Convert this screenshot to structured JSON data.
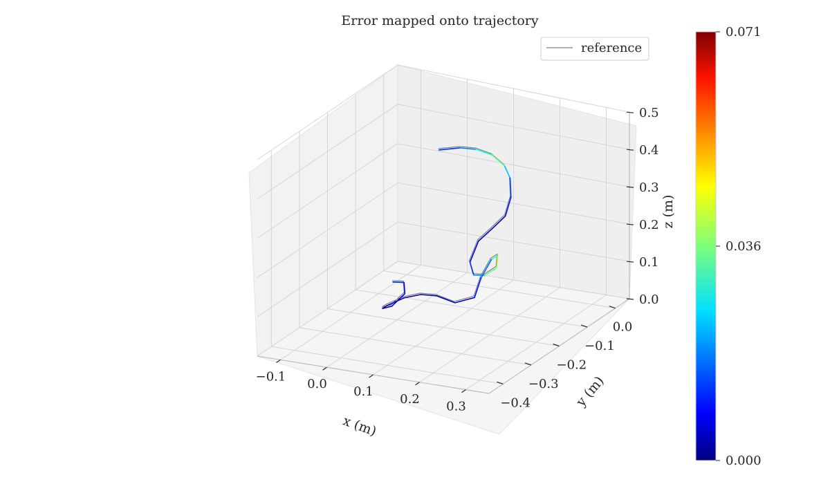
{
  "chart_data": {
    "type": "line",
    "projection": "3d",
    "title": "Error mapped onto trajectory",
    "xlabel": "x (m)",
    "ylabel": "y (m)",
    "zlabel": "z (m)",
    "xticks": [
      "−0.1",
      "0.0",
      "0.1",
      "0.2",
      "0.3"
    ],
    "yticks": [
      "0.0",
      "−0.1",
      "−0.2",
      "−0.3",
      "−0.4"
    ],
    "zticks": [
      "0.0",
      "0.1",
      "0.2",
      "0.3",
      "0.4",
      "0.5"
    ],
    "xlim": [
      -0.15,
      0.35
    ],
    "ylim": [
      -0.45,
      0.05
    ],
    "zlim": [
      0.0,
      0.5
    ],
    "grid": true,
    "legend": {
      "position": "top-right",
      "entries": [
        {
          "label": "reference",
          "color": "#808080"
        }
      ]
    },
    "colorbar": {
      "colormap": "jet",
      "min": 0.0,
      "max": 0.071,
      "ticks": [
        "0.071",
        "0.036",
        "0.000"
      ]
    },
    "series": [
      {
        "name": "reference",
        "color": "#808080",
        "points": [
          [
            -0.02,
            -0.02,
            0.35
          ],
          [
            0.02,
            -0.01,
            0.36
          ],
          [
            0.06,
            -0.02,
            0.37
          ],
          [
            0.1,
            -0.03,
            0.37
          ],
          [
            0.14,
            -0.05,
            0.36
          ],
          [
            0.17,
            -0.08,
            0.35
          ],
          [
            0.19,
            -0.11,
            0.32
          ],
          [
            0.19,
            -0.13,
            0.28
          ],
          [
            0.17,
            -0.14,
            0.25
          ],
          [
            0.15,
            -0.16,
            0.22
          ],
          [
            0.15,
            -0.19,
            0.18
          ],
          [
            0.17,
            -0.21,
            0.16
          ],
          [
            0.2,
            -0.22,
            0.17
          ],
          [
            0.22,
            -0.21,
            0.19
          ],
          [
            0.21,
            -0.19,
            0.21
          ],
          [
            0.19,
            -0.18,
            0.19
          ],
          [
            0.18,
            -0.2,
            0.15
          ],
          [
            0.19,
            -0.24,
            0.12
          ],
          [
            0.16,
            -0.26,
            0.11
          ],
          [
            0.12,
            -0.26,
            0.12
          ],
          [
            0.08,
            -0.25,
            0.11
          ],
          [
            0.05,
            -0.26,
            0.1
          ],
          [
            0.03,
            -0.29,
            0.09
          ],
          [
            0.04,
            -0.32,
            0.1
          ],
          [
            0.06,
            -0.32,
            0.11
          ],
          [
            0.07,
            -0.29,
            0.13
          ],
          [
            0.05,
            -0.26,
            0.14
          ],
          [
            0.02,
            -0.25,
            0.13
          ]
        ]
      },
      {
        "name": "",
        "colormap_values": [
          0.012,
          0.018,
          0.028,
          0.034,
          0.022,
          0.014,
          0.01,
          0.006,
          0.004,
          0.008,
          0.012,
          0.02,
          0.034,
          0.04,
          0.03,
          0.016,
          0.01,
          0.006,
          0.004,
          0.003,
          0.002,
          0.003,
          0.002,
          0.004,
          0.006,
          0.008,
          0.012,
          0.01
        ],
        "points": [
          [
            -0.02,
            -0.02,
            0.35
          ],
          [
            0.02,
            -0.01,
            0.36
          ],
          [
            0.06,
            -0.02,
            0.37
          ],
          [
            0.1,
            -0.03,
            0.37
          ],
          [
            0.14,
            -0.05,
            0.36
          ],
          [
            0.17,
            -0.08,
            0.35
          ],
          [
            0.19,
            -0.11,
            0.32
          ],
          [
            0.19,
            -0.13,
            0.28
          ],
          [
            0.17,
            -0.14,
            0.25
          ],
          [
            0.15,
            -0.16,
            0.22
          ],
          [
            0.15,
            -0.19,
            0.18
          ],
          [
            0.17,
            -0.21,
            0.16
          ],
          [
            0.2,
            -0.22,
            0.17
          ],
          [
            0.22,
            -0.21,
            0.19
          ],
          [
            0.21,
            -0.19,
            0.21
          ],
          [
            0.19,
            -0.18,
            0.19
          ],
          [
            0.18,
            -0.2,
            0.15
          ],
          [
            0.19,
            -0.24,
            0.12
          ],
          [
            0.16,
            -0.26,
            0.11
          ],
          [
            0.12,
            -0.26,
            0.12
          ],
          [
            0.08,
            -0.25,
            0.11
          ],
          [
            0.05,
            -0.26,
            0.1
          ],
          [
            0.03,
            -0.29,
            0.09
          ],
          [
            0.04,
            -0.32,
            0.1
          ],
          [
            0.06,
            -0.32,
            0.11
          ],
          [
            0.07,
            -0.29,
            0.13
          ],
          [
            0.05,
            -0.26,
            0.14
          ],
          [
            0.02,
            -0.25,
            0.13
          ]
        ]
      }
    ]
  }
}
